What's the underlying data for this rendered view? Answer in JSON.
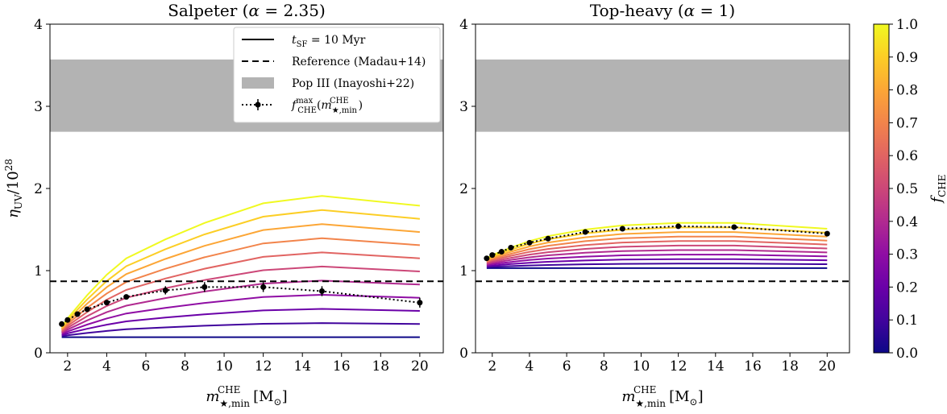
{
  "chart_data": [
    {
      "type": "line",
      "title": "Salpeter (α = 2.35)",
      "xlabel": "m★,min^CHE [M⊙]",
      "ylabel": "ηUV / 10^28",
      "xlim": [
        1.1,
        21.2
      ],
      "ylim": [
        0,
        4
      ],
      "xticks": [
        2,
        4,
        6,
        8,
        10,
        12,
        14,
        16,
        18,
        20
      ],
      "yticks": [
        0,
        1,
        2,
        3,
        4
      ],
      "x": [
        1.7,
        2,
        3,
        4,
        5,
        7,
        9,
        12,
        15,
        20
      ],
      "f_che_values": [
        0.0,
        0.1,
        0.2,
        0.3,
        0.4,
        0.5,
        0.6,
        0.7,
        0.8,
        0.9,
        1.0
      ],
      "series_base": [
        0.19,
        0.19,
        0.19,
        0.19,
        0.19,
        0.19,
        0.19,
        0.19,
        0.19,
        0.19
      ],
      "series_top": [
        0.32,
        0.42,
        0.7,
        0.95,
        1.15,
        1.38,
        1.58,
        1.82,
        1.91,
        1.79
      ],
      "reference_line": 0.87,
      "pop3_band": [
        2.69,
        3.57
      ],
      "fmax_points": {
        "x": [
          1.7,
          2,
          2.5,
          3,
          4,
          5,
          7,
          9,
          12,
          15,
          20
        ],
        "y": [
          0.35,
          0.4,
          0.47,
          0.53,
          0.61,
          0.68,
          0.76,
          0.8,
          0.8,
          0.75,
          0.61
        ],
        "err": [
          0,
          0,
          0,
          0,
          0,
          0.03,
          0.05,
          0.06,
          0.06,
          0.06,
          0.06
        ]
      },
      "legend": {
        "position": "top-right",
        "entries": [
          {
            "label": "tSF = 10 Myr",
            "style": "solid"
          },
          {
            "label": "Reference (Madau+14)",
            "style": "dashed"
          },
          {
            "label": "Pop III (Inayoshi+22)",
            "style": "band"
          },
          {
            "label": "fCHE^max(m★,min^CHE)",
            "style": "dotted-errorbar"
          }
        ]
      }
    },
    {
      "type": "line",
      "title": "Top-heavy (α = 1)",
      "xlabel": "m★,min^CHE [M⊙]",
      "ylabel": "",
      "xlim": [
        1.1,
        21.2
      ],
      "ylim": [
        0,
        4
      ],
      "xticks": [
        2,
        4,
        6,
        8,
        10,
        12,
        14,
        16,
        18,
        20
      ],
      "yticks": [
        0,
        1,
        2,
        3,
        4
      ],
      "x": [
        1.7,
        2,
        3,
        4,
        5,
        7,
        9,
        12,
        15,
        20
      ],
      "f_che_values": [
        0.0,
        0.1,
        0.2,
        0.3,
        0.4,
        0.5,
        0.6,
        0.7,
        0.8,
        0.9,
        1.0
      ],
      "series_base": [
        1.03,
        1.03,
        1.03,
        1.03,
        1.03,
        1.03,
        1.03,
        1.03,
        1.03,
        1.03
      ],
      "series_top": [
        1.15,
        1.19,
        1.28,
        1.36,
        1.42,
        1.5,
        1.55,
        1.58,
        1.58,
        1.51
      ],
      "reference_line": 0.87,
      "pop3_band": [
        2.69,
        3.57
      ],
      "fmax_points": {
        "x": [
          1.7,
          2,
          2.5,
          3,
          4,
          5,
          7,
          9,
          12,
          15,
          20
        ],
        "y": [
          1.15,
          1.19,
          1.23,
          1.28,
          1.34,
          1.39,
          1.47,
          1.51,
          1.54,
          1.53,
          1.45
        ],
        "err": [
          0,
          0,
          0,
          0,
          0,
          0,
          0,
          0,
          0,
          0,
          0
        ]
      }
    }
  ],
  "colorbar": {
    "label": "fCHE",
    "min": 0.0,
    "max": 1.0,
    "ticks": [
      "0.0",
      "0.1",
      "0.2",
      "0.3",
      "0.4",
      "0.5",
      "0.6",
      "0.7",
      "0.8",
      "0.9",
      "1.0"
    ],
    "colormap": "plasma"
  },
  "colors": {
    "band": "#b3b3b3",
    "reference": "#000000",
    "plasma_stops": [
      "#0d0887",
      "#41049d",
      "#6a00a8",
      "#8f0da4",
      "#b12a90",
      "#cc4778",
      "#e16462",
      "#f2844b",
      "#fca636",
      "#fcce25",
      "#f0f921"
    ]
  }
}
